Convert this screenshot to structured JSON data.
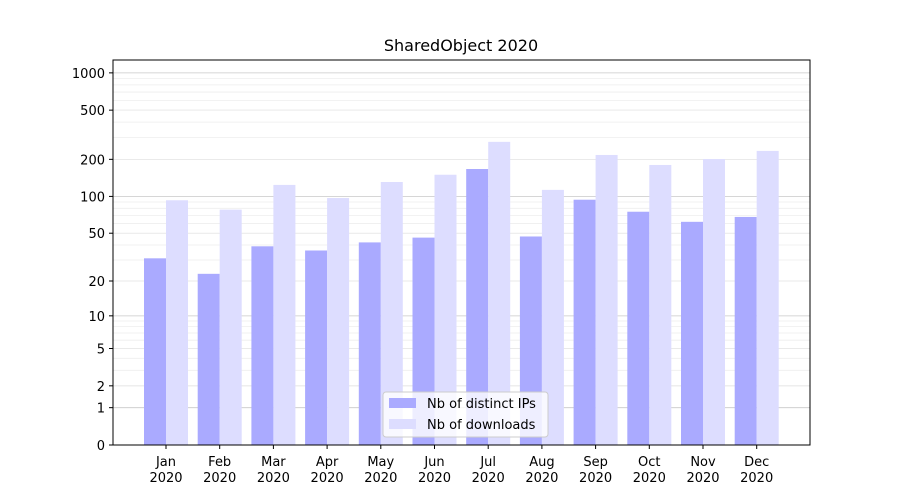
{
  "chart_data": {
    "type": "bar",
    "title": "SharedObject 2020",
    "categories": [
      "Jan\n2020",
      "Feb\n2020",
      "Mar\n2020",
      "Apr\n2020",
      "May\n2020",
      "Jun\n2020",
      "Jul\n2020",
      "Aug\n2020",
      "Sep\n2020",
      "Oct\n2020",
      "Nov\n2020",
      "Dec\n2020"
    ],
    "series": [
      {
        "name": "Nb of distinct IPs",
        "color": "#aaaaff",
        "values": [
          31,
          23,
          39,
          36,
          42,
          46,
          167,
          47,
          94,
          75,
          62,
          68
        ]
      },
      {
        "name": "Nb of downloads",
        "color": "#ddddff",
        "values": [
          93,
          78,
          124,
          97,
          131,
          150,
          277,
          113,
          217,
          180,
          201,
          234
        ]
      }
    ],
    "yscale": "log1p",
    "ylim": [
      0,
      1270
    ],
    "yticks": [
      0,
      1,
      2,
      5,
      10,
      20,
      50,
      100,
      200,
      500,
      1000
    ],
    "grid": true,
    "legend": "lower center"
  }
}
